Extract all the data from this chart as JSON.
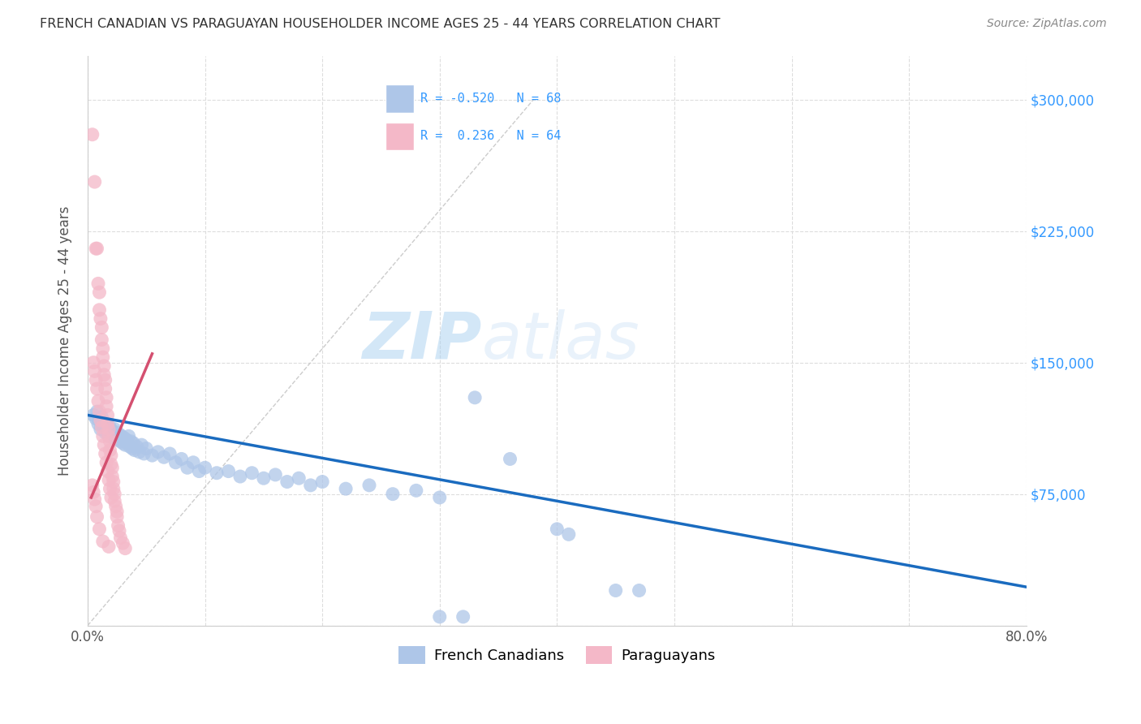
{
  "title": "FRENCH CANADIAN VS PARAGUAYAN HOUSEHOLDER INCOME AGES 25 - 44 YEARS CORRELATION CHART",
  "source": "Source: ZipAtlas.com",
  "ylabel": "Householder Income Ages 25 - 44 years",
  "x_min": 0.0,
  "x_max": 0.8,
  "y_min": 0,
  "y_max": 325000,
  "x_ticks": [
    0.0,
    0.1,
    0.2,
    0.3,
    0.4,
    0.5,
    0.6,
    0.7,
    0.8
  ],
  "x_tick_labels": [
    "0.0%",
    "",
    "",
    "",
    "",
    "",
    "",
    "",
    "80.0%"
  ],
  "y_ticks": [
    0,
    75000,
    150000,
    225000,
    300000
  ],
  "y_tick_labels": [
    "",
    "$75,000",
    "$150,000",
    "$225,000",
    "$300,000"
  ],
  "watermark_zip": "ZIP",
  "watermark_atlas": "atlas",
  "title_color": "#333333",
  "axis_color": "#cccccc",
  "grid_color": "#dddddd",
  "right_tick_color": "#3399ff",
  "blue_scatter_color": "#aec6e8",
  "pink_scatter_color": "#f4b8c8",
  "blue_line_color": "#1a6bbf",
  "pink_line_color": "#d45070",
  "diag_line_color": "#cccccc",
  "blue_trend_x": [
    0.0,
    0.8
  ],
  "blue_trend_y": [
    120000,
    22000
  ],
  "pink_trend_x": [
    0.003,
    0.055
  ],
  "pink_trend_y": [
    73000,
    155000
  ],
  "diag_line_x": [
    0.0,
    0.38
  ],
  "diag_line_y": [
    0,
    300000
  ],
  "blue_scatter": [
    [
      0.005,
      120000
    ],
    [
      0.007,
      118000
    ],
    [
      0.008,
      122000
    ],
    [
      0.009,
      115000
    ],
    [
      0.01,
      117000
    ],
    [
      0.011,
      112000
    ],
    [
      0.012,
      119000
    ],
    [
      0.013,
      114000
    ],
    [
      0.014,
      116000
    ],
    [
      0.015,
      110000
    ],
    [
      0.016,
      115000
    ],
    [
      0.017,
      112000
    ],
    [
      0.018,
      108000
    ],
    [
      0.019,
      113000
    ],
    [
      0.02,
      109000
    ],
    [
      0.021,
      111000
    ],
    [
      0.022,
      107000
    ],
    [
      0.023,
      112000
    ],
    [
      0.024,
      108000
    ],
    [
      0.025,
      110000
    ],
    [
      0.026,
      106000
    ],
    [
      0.027,
      109000
    ],
    [
      0.028,
      105000
    ],
    [
      0.029,
      108000
    ],
    [
      0.03,
      104000
    ],
    [
      0.031,
      107000
    ],
    [
      0.032,
      103000
    ],
    [
      0.033,
      106000
    ],
    [
      0.034,
      104000
    ],
    [
      0.035,
      108000
    ],
    [
      0.036,
      102000
    ],
    [
      0.037,
      105000
    ],
    [
      0.038,
      101000
    ],
    [
      0.039,
      104000
    ],
    [
      0.04,
      100000
    ],
    [
      0.042,
      102000
    ],
    [
      0.044,
      99000
    ],
    [
      0.046,
      103000
    ],
    [
      0.048,
      98000
    ],
    [
      0.05,
      101000
    ],
    [
      0.055,
      97000
    ],
    [
      0.06,
      99000
    ],
    [
      0.065,
      96000
    ],
    [
      0.07,
      98000
    ],
    [
      0.075,
      93000
    ],
    [
      0.08,
      95000
    ],
    [
      0.085,
      90000
    ],
    [
      0.09,
      93000
    ],
    [
      0.095,
      88000
    ],
    [
      0.1,
      90000
    ],
    [
      0.11,
      87000
    ],
    [
      0.12,
      88000
    ],
    [
      0.13,
      85000
    ],
    [
      0.14,
      87000
    ],
    [
      0.15,
      84000
    ],
    [
      0.16,
      86000
    ],
    [
      0.17,
      82000
    ],
    [
      0.18,
      84000
    ],
    [
      0.19,
      80000
    ],
    [
      0.2,
      82000
    ],
    [
      0.22,
      78000
    ],
    [
      0.24,
      80000
    ],
    [
      0.26,
      75000
    ],
    [
      0.28,
      77000
    ],
    [
      0.3,
      73000
    ],
    [
      0.33,
      130000
    ],
    [
      0.36,
      95000
    ],
    [
      0.4,
      55000
    ],
    [
      0.41,
      52000
    ],
    [
      0.3,
      5000
    ],
    [
      0.32,
      5000
    ],
    [
      0.45,
      20000
    ],
    [
      0.47,
      20000
    ]
  ],
  "pink_scatter": [
    [
      0.004,
      280000
    ],
    [
      0.006,
      253000
    ],
    [
      0.007,
      215000
    ],
    [
      0.008,
      215000
    ],
    [
      0.009,
      195000
    ],
    [
      0.01,
      190000
    ],
    [
      0.01,
      180000
    ],
    [
      0.011,
      175000
    ],
    [
      0.012,
      170000
    ],
    [
      0.012,
      163000
    ],
    [
      0.013,
      158000
    ],
    [
      0.013,
      153000
    ],
    [
      0.014,
      148000
    ],
    [
      0.014,
      143000
    ],
    [
      0.015,
      140000
    ],
    [
      0.015,
      135000
    ],
    [
      0.016,
      130000
    ],
    [
      0.016,
      125000
    ],
    [
      0.017,
      120000
    ],
    [
      0.017,
      115000
    ],
    [
      0.018,
      112000
    ],
    [
      0.018,
      108000
    ],
    [
      0.019,
      105000
    ],
    [
      0.019,
      100000
    ],
    [
      0.02,
      97000
    ],
    [
      0.02,
      92000
    ],
    [
      0.021,
      90000
    ],
    [
      0.021,
      85000
    ],
    [
      0.022,
      82000
    ],
    [
      0.022,
      78000
    ],
    [
      0.023,
      75000
    ],
    [
      0.023,
      71000
    ],
    [
      0.024,
      68000
    ],
    [
      0.025,
      65000
    ],
    [
      0.025,
      62000
    ],
    [
      0.026,
      57000
    ],
    [
      0.027,
      54000
    ],
    [
      0.028,
      50000
    ],
    [
      0.03,
      47000
    ],
    [
      0.032,
      44000
    ],
    [
      0.005,
      150000
    ],
    [
      0.006,
      145000
    ],
    [
      0.007,
      140000
    ],
    [
      0.008,
      135000
    ],
    [
      0.009,
      128000
    ],
    [
      0.01,
      122000
    ],
    [
      0.011,
      117000
    ],
    [
      0.012,
      113000
    ],
    [
      0.013,
      108000
    ],
    [
      0.014,
      103000
    ],
    [
      0.015,
      98000
    ],
    [
      0.016,
      93000
    ],
    [
      0.017,
      88000
    ],
    [
      0.018,
      83000
    ],
    [
      0.019,
      78000
    ],
    [
      0.02,
      73000
    ],
    [
      0.004,
      80000
    ],
    [
      0.005,
      76000
    ],
    [
      0.006,
      72000
    ],
    [
      0.007,
      68000
    ],
    [
      0.008,
      62000
    ],
    [
      0.01,
      55000
    ],
    [
      0.013,
      48000
    ],
    [
      0.018,
      45000
    ]
  ]
}
